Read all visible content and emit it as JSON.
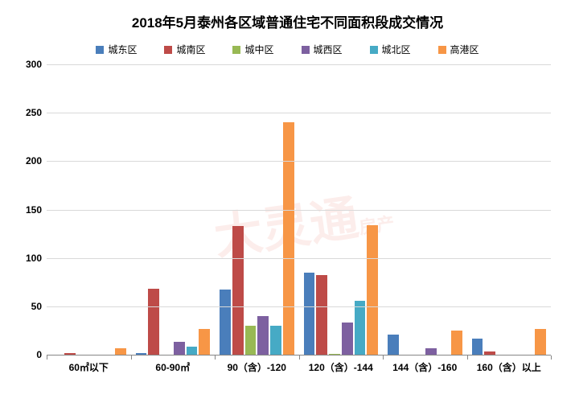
{
  "chart": {
    "type": "bar-grouped",
    "title": "2018年5月泰州各区域普通住宅不同面积段成交情况",
    "title_fontsize": 17,
    "background_color": "#ffffff",
    "grid_color": "#d9d9d9",
    "axis_color": "#878787",
    "font_family": "Microsoft YaHei",
    "label_fontsize": 12,
    "label_weight": "bold",
    "ylim": [
      0,
      300
    ],
    "ytick_step": 50,
    "yticks": [
      0,
      50,
      100,
      150,
      200,
      250,
      300
    ],
    "bar_gap": 2,
    "bar_max_width": 14,
    "categories": [
      "60㎡以下",
      "60-90㎡",
      "90（含）-120",
      "120（含）-144",
      "144（含）-160",
      "160（含）以上"
    ],
    "series": [
      {
        "name": "城东区",
        "color": "#4a7ebb",
        "values": [
          0,
          2,
          67,
          85,
          21,
          17
        ]
      },
      {
        "name": "城南区",
        "color": "#be4b48",
        "values": [
          2,
          68,
          133,
          82,
          0,
          3
        ]
      },
      {
        "name": "城中区",
        "color": "#98b954",
        "values": [
          0,
          0,
          30,
          1,
          0,
          0
        ]
      },
      {
        "name": "城西区",
        "color": "#7d60a0",
        "values": [
          0,
          13,
          40,
          33,
          7,
          0
        ]
      },
      {
        "name": "城北区",
        "color": "#46aac5",
        "values": [
          0,
          8,
          30,
          56,
          0,
          0
        ]
      },
      {
        "name": "高港区",
        "color": "#f79646",
        "values": [
          7,
          27,
          240,
          134,
          25,
          27
        ]
      }
    ],
    "watermark": {
      "main": "大灵通",
      "sub": "房产",
      "domain": "house.ht.cn",
      "color": "rgba(230,110,90,0.12)"
    }
  }
}
